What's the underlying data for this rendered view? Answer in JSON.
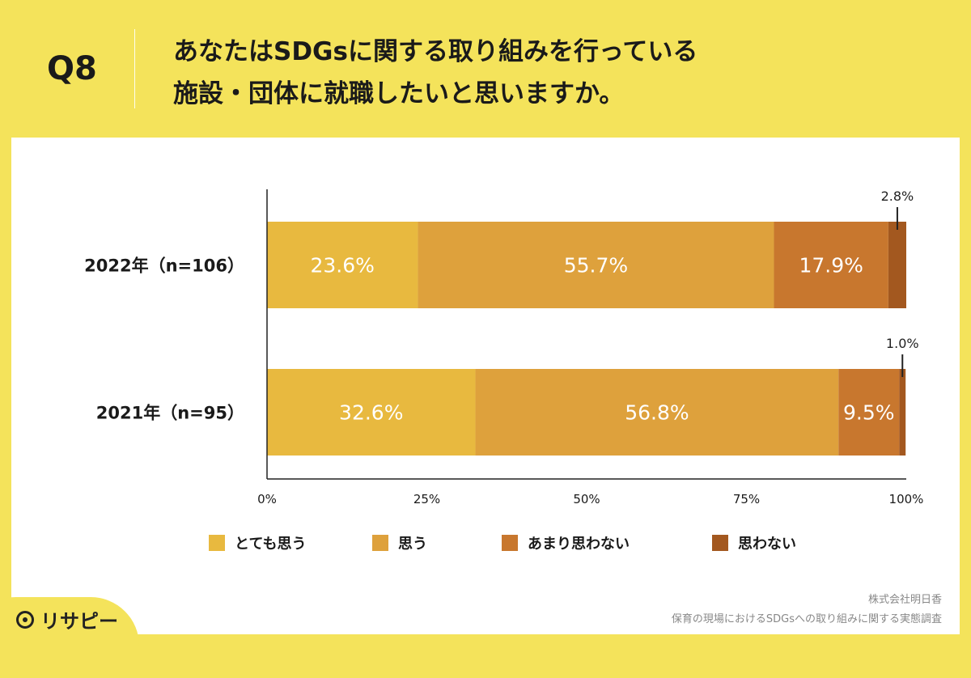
{
  "header": {
    "qnum": "Q8",
    "title_line1": "あなたはSDGsに関する取り組みを行っている",
    "title_line2": "施設・団体に就職したいと思いますか。"
  },
  "chart_data": {
    "type": "bar",
    "orientation": "horizontal",
    "stacked": true,
    "categories": [
      "2022年（n=106）",
      "2021年（n=95）"
    ],
    "series": [
      {
        "name": "とても思う",
        "color": "#e8b93f",
        "values": [
          23.6,
          32.6
        ],
        "labels": [
          "23.6%",
          "32.6%"
        ]
      },
      {
        "name": "思う",
        "color": "#dea13c",
        "values": [
          55.7,
          56.8
        ],
        "labels": [
          "55.7%",
          "56.8%"
        ]
      },
      {
        "name": "あまり思わない",
        "color": "#c8772e",
        "values": [
          17.9,
          9.5
        ],
        "labels": [
          "17.9%",
          "9.5%"
        ]
      },
      {
        "name": "思わない",
        "color": "#a3581f",
        "values": [
          2.8,
          1.0
        ],
        "labels": [
          "2.8%",
          "1.0%"
        ]
      }
    ],
    "xlim": [
      0,
      100
    ],
    "xticks": [
      "0%",
      "25%",
      "50%",
      "75%",
      "100%"
    ],
    "legend_position": "bottom"
  },
  "credits": {
    "line1": "株式会社明日香",
    "line2": "保育の現場におけるSDGsへの取り組みに関する実態調査"
  },
  "logo": {
    "text": "リサピー"
  }
}
